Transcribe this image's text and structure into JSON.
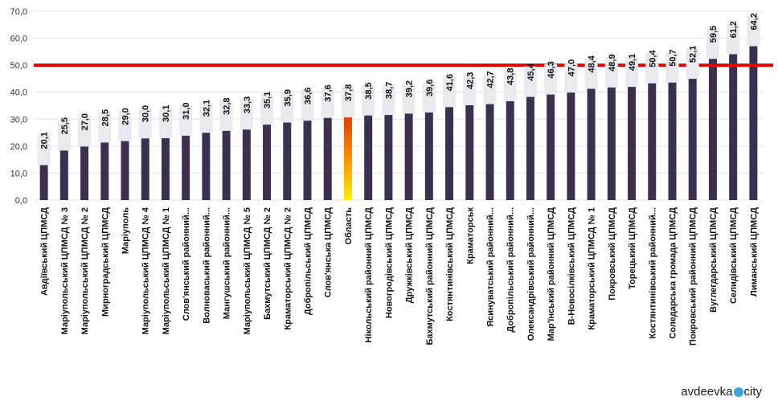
{
  "chart_data": {
    "type": "bar",
    "ylim": [
      0,
      70
    ],
    "yticks": [
      "0,0",
      "10,0",
      "20,0",
      "30,0",
      "40,0",
      "50,0",
      "60,0",
      "70,0"
    ],
    "threshold": 50,
    "grid": true,
    "categories": [
      "Авдіївський ЦПМСД",
      "Маріупольський ЦПМСД № 3",
      "Маріупольський ЦПМСД № 2",
      "Мирноградський ЦПМСД",
      "Маріуполь",
      "Маріупольський ЦПМСД № 4",
      "Маріупольський ЦПМСД № 1",
      "Слов'янський районний...",
      "Волноваський районний...",
      "Мангушський районний...",
      "Маріупольський ЦПМСД № 5",
      "Бахмутський ЦПМСД № 2",
      "Краматорський ЦПМСД № 2",
      "Добропільський ЦПМСД",
      "Слов'янська ЦПМСД",
      "Область",
      "Нікольський районний ЦПМСД",
      "Новогродівський ЦПМСД",
      "Дружківський ЦПМСД",
      "Бахмутський районний ЦПМСД",
      "Костянтинівський ЦПМСД",
      "Краматорськ",
      "Ясинуватський районний...",
      "Добропільський районний...",
      "Олександрівський районний...",
      "Мар'їнський районний ЦПМСД",
      "В-Новосілківський ЦПМСД",
      "Краматорський ЦПМСД № 1",
      "Покровський ЦПМСД",
      "Торецький ЦПМСД",
      "Костянтинівський районний...",
      "Соледарська громада ЦПМСД",
      "Покровський районний ЦПМСД",
      "Вуглегдарський ЦПМСД",
      "Селидівський ЦПМСД",
      "Лиманський ЦПМСД"
    ],
    "values": [
      20.1,
      25.5,
      27.0,
      28.5,
      29.0,
      30.0,
      30.1,
      31.0,
      32.1,
      32.8,
      33.3,
      35.1,
      35.9,
      36.6,
      37.6,
      37.8,
      38.5,
      38.7,
      39.2,
      39.6,
      41.6,
      42.3,
      42.7,
      43.8,
      45.4,
      46.3,
      47.0,
      48.4,
      48.9,
      49.1,
      50.4,
      50.7,
      52.1,
      59.5,
      61.2,
      64.2
    ],
    "value_labels": [
      "20,1",
      "25,5",
      "27,0",
      "28,5",
      "29,0",
      "30,0",
      "30,1",
      "31,0",
      "32,1",
      "32,8",
      "33,3",
      "35,1",
      "35,9",
      "36,6",
      "37,6",
      "37,8",
      "38,5",
      "38,7",
      "39,2",
      "39,6",
      "41,6",
      "42,3",
      "42,7",
      "43,8",
      "45,4",
      "46,3",
      "47,0",
      "48,4",
      "48,9",
      "49,1",
      "50,4",
      "50,7",
      "52,1",
      "59,5",
      "61,2",
      "64,2"
    ],
    "highlight_index": 15,
    "colors": {
      "bar": "#3b3050",
      "highlight_top": "#cc1a00",
      "highlight_bottom": "#ffee00",
      "threshold": "#e60000"
    }
  },
  "watermark": {
    "prefix": "avdeevka",
    "suffix": "city",
    "dot_icon": "blue-circle-icon"
  }
}
